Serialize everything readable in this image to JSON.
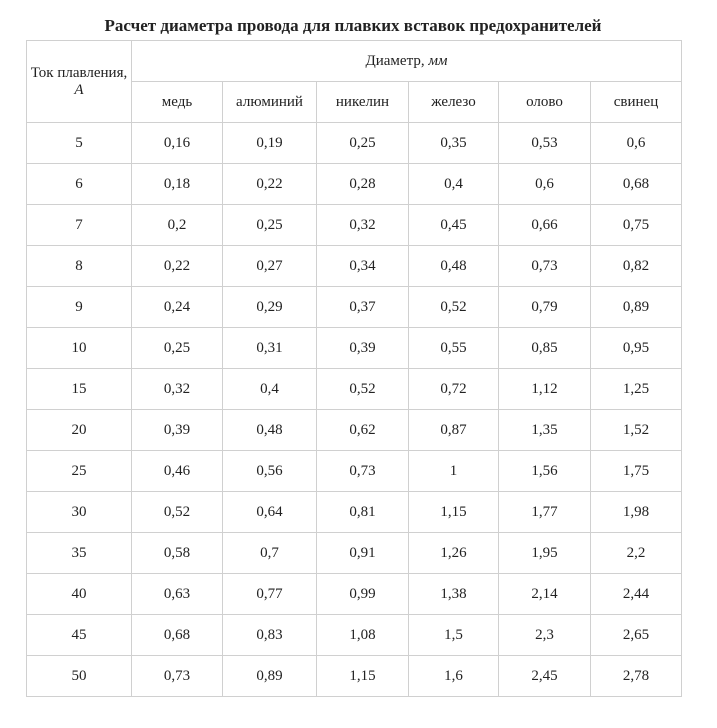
{
  "header": {
    "title": "Расчет диаметра провода для плавких вставок предохранителей"
  },
  "table": {
    "current_header": {
      "text": "Ток плавления,",
      "unit": "A"
    },
    "diameter_header": {
      "text": "Диаметр,",
      "unit": "мм"
    },
    "materials": [
      "медь",
      "алюминий",
      "никелин",
      "железо",
      "олово",
      "свинец"
    ],
    "rows": [
      [
        "5",
        "0,16",
        "0,19",
        "0,25",
        "0,35",
        "0,53",
        "0,6"
      ],
      [
        "6",
        "0,18",
        "0,22",
        "0,28",
        "0,4",
        "0,6",
        "0,68"
      ],
      [
        "7",
        "0,2",
        "0,25",
        "0,32",
        "0,45",
        "0,66",
        "0,75"
      ],
      [
        "8",
        "0,22",
        "0,27",
        "0,34",
        "0,48",
        "0,73",
        "0,82"
      ],
      [
        "9",
        "0,24",
        "0,29",
        "0,37",
        "0,52",
        "0,79",
        "0,89"
      ],
      [
        "10",
        "0,25",
        "0,31",
        "0,39",
        "0,55",
        "0,85",
        "0,95"
      ],
      [
        "15",
        "0,32",
        "0,4",
        "0,52",
        "0,72",
        "1,12",
        "1,25"
      ],
      [
        "20",
        "0,39",
        "0,48",
        "0,62",
        "0,87",
        "1,35",
        "1,52"
      ],
      [
        "25",
        "0,46",
        "0,56",
        "0,73",
        "1",
        "1,56",
        "1,75"
      ],
      [
        "30",
        "0,52",
        "0,64",
        "0,81",
        "1,15",
        "1,77",
        "1,98"
      ],
      [
        "35",
        "0,58",
        "0,7",
        "0,91",
        "1,26",
        "1,95",
        "2,2"
      ],
      [
        "40",
        "0,63",
        "0,77",
        "0,99",
        "1,38",
        "2,14",
        "2,44"
      ],
      [
        "45",
        "0,68",
        "0,83",
        "1,08",
        "1,5",
        "2,3",
        "2,65"
      ],
      [
        "50",
        "0,73",
        "0,89",
        "1,15",
        "1,6",
        "2,45",
        "2,78"
      ]
    ]
  }
}
